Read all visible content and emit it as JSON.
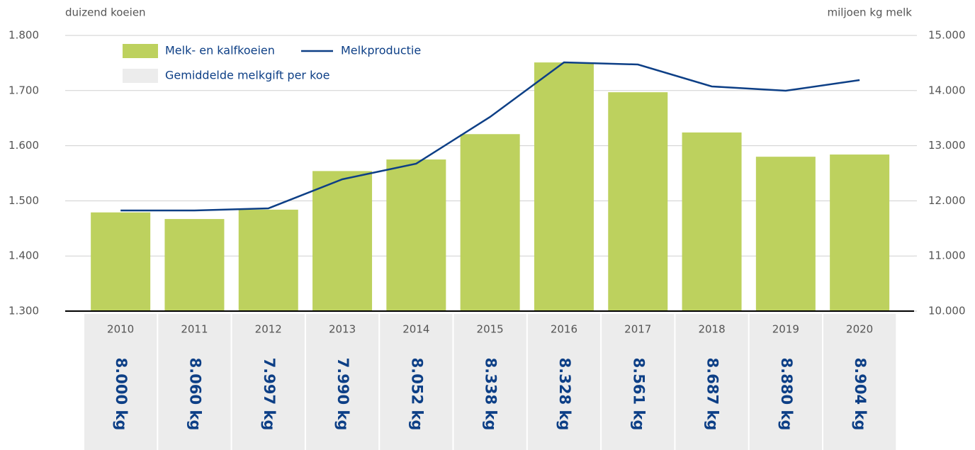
{
  "chart_data": {
    "type": "bar-line",
    "y_label": "duizend koeien",
    "y2_label": "miljoen kg melk",
    "categories": [
      "2010",
      "2011",
      "2012",
      "2013",
      "2014",
      "2015",
      "2016",
      "2017",
      "2018",
      "2019",
      "2020"
    ],
    "series": [
      {
        "name": "Melk- en kalfkoeien",
        "color": "#bdd15e",
        "type": "bar",
        "values": [
          1479,
          1467,
          1484,
          1554,
          1575,
          1621,
          1751,
          1697,
          1624,
          1580,
          1584
        ]
      },
      {
        "name": "Melkproductie",
        "color": "#0d3f86",
        "type": "line",
        "axis": "y2",
        "values": [
          11825,
          11825,
          11864,
          12391,
          12674,
          13522,
          14512,
          14473,
          14075,
          13997,
          14190
        ]
      },
      {
        "name": "Gemiddelde melkgift per koe",
        "color": "#ececec",
        "type": "table",
        "values": [
          8000,
          8060,
          7997,
          7990,
          8052,
          8338,
          8328,
          8561,
          8687,
          8880,
          8904
        ],
        "value_labels": [
          "8.000 kg",
          "8.060 kg",
          "7.997 kg",
          "7.990 kg",
          "8.052 kg",
          "8.338 kg",
          "8.328 kg",
          "8.561 kg",
          "8.687 kg",
          "8.880 kg",
          "8.904 kg"
        ]
      }
    ],
    "ylim": [
      1300,
      1800
    ],
    "yticks": [
      {
        "value": 1300,
        "label": "1.300"
      },
      {
        "value": 1400,
        "label": "1.400"
      },
      {
        "value": 1500,
        "label": "1.500"
      },
      {
        "value": 1600,
        "label": "1.600"
      },
      {
        "value": 1700,
        "label": "1.700"
      },
      {
        "value": 1800,
        "label": "1.800"
      }
    ],
    "y2lim": [
      10000,
      15000
    ],
    "y2ticks": [
      {
        "value": 10000,
        "label": "10.000"
      },
      {
        "value": 11000,
        "label": "11.000"
      },
      {
        "value": 12000,
        "label": "12.000"
      },
      {
        "value": 13000,
        "label": "13.000"
      },
      {
        "value": 14000,
        "label": "14.000"
      },
      {
        "value": 15000,
        "label": "15.000"
      }
    ],
    "grid": true
  }
}
